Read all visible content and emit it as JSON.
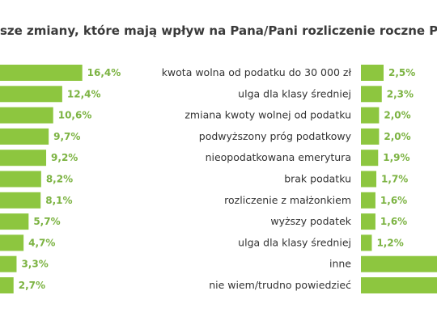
{
  "title": "sze zmiany, które mają wpływ na Pana/Pani rozliczenie roczne PIT:",
  "colors": {
    "bar": "#8dc63f",
    "value_text": "#7cb342",
    "text": "#333333"
  },
  "chart_data": {
    "type": "bar",
    "orientation": "horizontal",
    "title": "sze zmiany, które mają wpływ na Pana/Pani rozliczenie roczne PIT:",
    "left_panel": {
      "values": [
        16.4,
        12.4,
        10.6,
        9.7,
        9.2,
        8.2,
        8.1,
        5.7,
        4.7,
        3.3,
        2.7
      ],
      "labels": [
        "16,4%",
        "12,4%",
        "10,6%",
        "9,7%",
        "9,2%",
        "8,2%",
        "8,1%",
        "5,7%",
        "4,7%",
        "3,3%",
        "2,7%"
      ]
    },
    "right_panel": {
      "categories": [
        "kwota wolna od podatku do 30 000 zł",
        "ulga dla klasy średniej",
        "zmiana kwoty wolnej od podatku",
        "podwyższony próg podatkowy",
        "nieopodatkowana emerytura",
        "brak podatku",
        "rozliczenie z małżonkiem",
        "wyższy podatek",
        "ulga dla klasy średniej",
        "inne",
        "nie wiem/trudno powiedzieć"
      ],
      "values": [
        2.5,
        2.3,
        2.0,
        2.0,
        1.9,
        1.7,
        1.6,
        1.6,
        1.2,
        null,
        null
      ],
      "labels": [
        "2,5%",
        "2,3%",
        "2,0%",
        "2,0%",
        "1,9%",
        "1,7%",
        "1,6%",
        "1,6%",
        "1,2%",
        "",
        ""
      ]
    }
  }
}
